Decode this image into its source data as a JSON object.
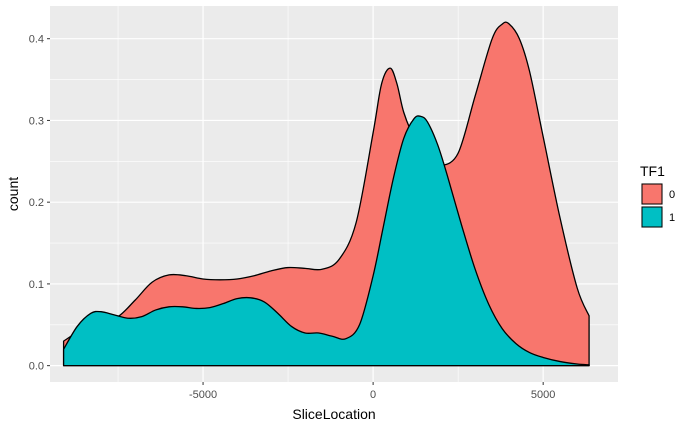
{
  "chart_data": {
    "type": "area",
    "xlabel": "SliceLocation",
    "ylabel": "count",
    "xlim": [
      -9500,
      7200
    ],
    "ylim": [
      -0.02,
      0.44
    ],
    "x_ticks": [
      -5000,
      0,
      5000
    ],
    "x_tick_labels": [
      "-5000",
      "0",
      "5000"
    ],
    "y_ticks": [
      0.0,
      0.1,
      0.2,
      0.3,
      0.4
    ],
    "y_tick_labels": [
      "0.0",
      "0.1",
      "0.2",
      "0.3",
      "0.4"
    ],
    "grid": true,
    "legend": {
      "title": "TF1",
      "position": "right"
    },
    "series": [
      {
        "name": "0",
        "color": "#F8766D",
        "x": [
          -9100,
          -8500,
          -8000,
          -7500,
          -7000,
          -6500,
          -6000,
          -5500,
          -5000,
          -4500,
          -4000,
          -3500,
          -3000,
          -2500,
          -2000,
          -1500,
          -1000,
          -500,
          0,
          250,
          500,
          700,
          900,
          1200,
          1500,
          1800,
          2000,
          2500,
          3000,
          3500,
          3800,
          4000,
          4300,
          4600,
          5000,
          5500,
          6000,
          6350
        ],
        "values": [
          0.03,
          0.046,
          0.054,
          0.06,
          0.08,
          0.102,
          0.111,
          0.11,
          0.106,
          0.105,
          0.106,
          0.11,
          0.116,
          0.12,
          0.119,
          0.118,
          0.13,
          0.175,
          0.285,
          0.345,
          0.364,
          0.345,
          0.31,
          0.28,
          0.265,
          0.255,
          0.245,
          0.26,
          0.33,
          0.4,
          0.418,
          0.418,
          0.4,
          0.36,
          0.28,
          0.18,
          0.095,
          0.061
        ]
      },
      {
        "name": "1",
        "color": "#00BFC4",
        "x": [
          -9100,
          -8700,
          -8300,
          -8000,
          -7600,
          -7200,
          -6800,
          -6400,
          -6000,
          -5600,
          -5200,
          -4800,
          -4400,
          -4000,
          -3600,
          -3200,
          -2800,
          -2400,
          -2000,
          -1600,
          -1200,
          -800,
          -400,
          0,
          300,
          600,
          900,
          1200,
          1400,
          1600,
          1900,
          2200,
          2600,
          3000,
          3400,
          3800,
          4200,
          4600,
          5000,
          5500,
          6000,
          6350
        ],
        "values": [
          0.02,
          0.048,
          0.064,
          0.066,
          0.062,
          0.058,
          0.06,
          0.068,
          0.072,
          0.072,
          0.07,
          0.071,
          0.076,
          0.082,
          0.083,
          0.078,
          0.064,
          0.048,
          0.04,
          0.04,
          0.036,
          0.033,
          0.05,
          0.11,
          0.17,
          0.23,
          0.278,
          0.302,
          0.305,
          0.298,
          0.27,
          0.23,
          0.172,
          0.118,
          0.075,
          0.045,
          0.027,
          0.016,
          0.01,
          0.005,
          0.002,
          0.001
        ]
      }
    ]
  }
}
